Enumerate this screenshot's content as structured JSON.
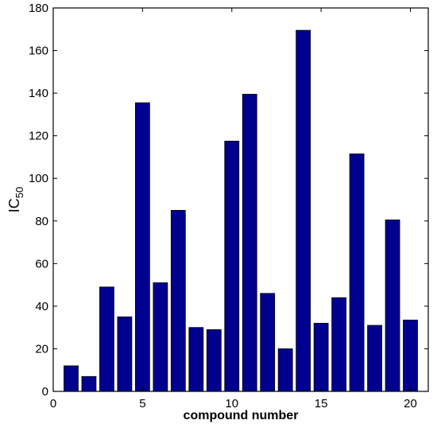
{
  "chart_data": {
    "type": "bar",
    "categories": [
      1,
      2,
      3,
      4,
      5,
      6,
      7,
      8,
      9,
      10,
      11,
      12,
      13,
      14,
      15,
      16,
      17,
      18,
      19,
      20
    ],
    "values": [
      12,
      7,
      49,
      35,
      135.5,
      51,
      85,
      30,
      29,
      117.5,
      139.5,
      46,
      20,
      169.5,
      32,
      44,
      111.5,
      31,
      80.5,
      33.5
    ],
    "title": "",
    "xlabel": "compound number",
    "ylabel": "IC",
    "ylabel_subscript": "50",
    "xlim": [
      0,
      21
    ],
    "ylim": [
      0,
      180
    ],
    "xticks": [
      0,
      5,
      10,
      15,
      20
    ],
    "yticks": [
      0,
      20,
      40,
      60,
      80,
      100,
      120,
      140,
      160,
      180
    ],
    "grid": false,
    "bar_color": "#00008f"
  }
}
